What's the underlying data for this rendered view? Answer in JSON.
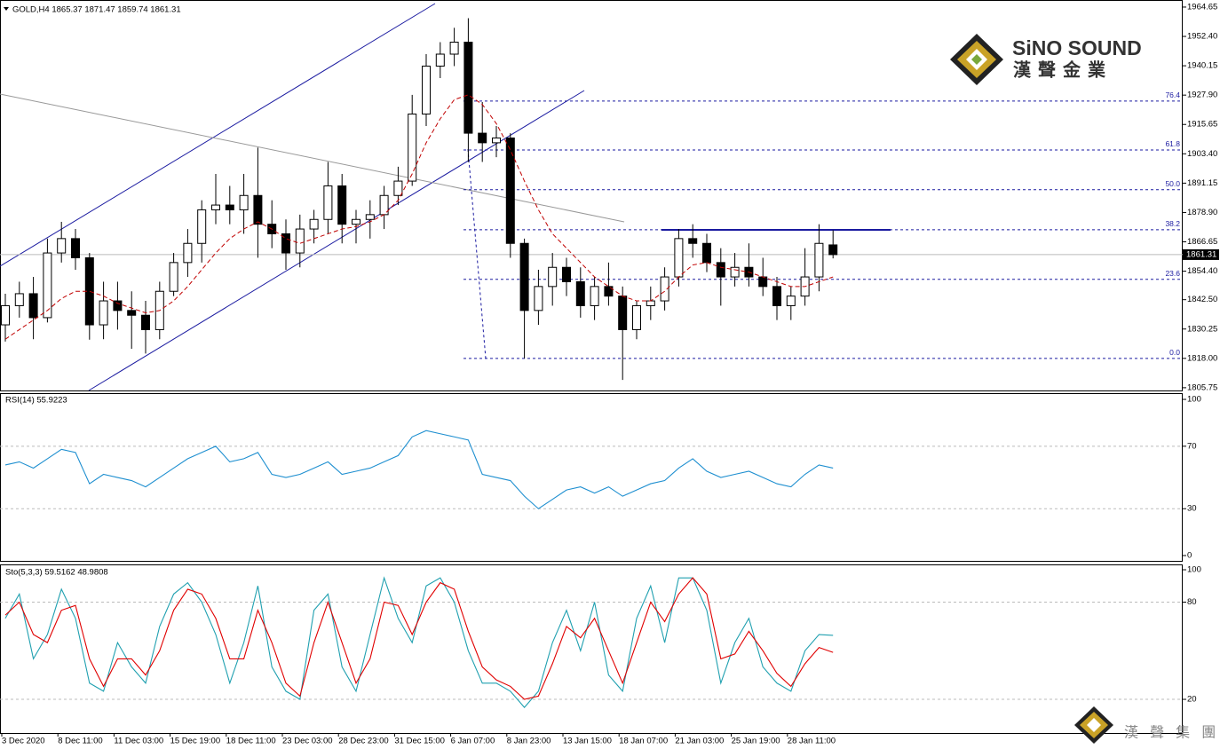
{
  "chart_data": [
    {
      "type": "candlestick",
      "title": "GOLD,H4  1865.37 1871.47 1859.74 1861.31",
      "categories": [
        "3 Dec 2020",
        null,
        null,
        null,
        "8 Dec 11:00",
        null,
        null,
        null,
        "11 Dec 03:00",
        null,
        null,
        null,
        "15 Dec 19:00",
        null,
        null,
        null,
        "18 Dec 11:00",
        null,
        null,
        null,
        "23 Dec 03:00",
        null,
        null,
        null,
        "28 Dec 23:00",
        null,
        null,
        null,
        "31 Dec 15:00",
        null,
        null,
        null,
        "6 Jan 07:00",
        null,
        null,
        null,
        "8 Jan 23:00",
        null,
        null,
        null,
        "13 Jan 15:00",
        null,
        null,
        null,
        "18 Jan 07:00",
        null,
        null,
        null,
        "21 Jan 03:00",
        null,
        null,
        null,
        "25 Jan 19:00",
        null,
        null,
        null,
        "28 Jan 11:00",
        null,
        null,
        null
      ],
      "open": [
        1832,
        1840,
        1845,
        1835,
        1862,
        1868,
        1860,
        1832,
        1842,
        1838,
        1836,
        1830,
        1846,
        1858,
        1866,
        1880,
        1882,
        1880,
        1886,
        1874,
        1870,
        1862,
        1872,
        1876,
        1890,
        1874,
        1876,
        1878,
        1886,
        1892,
        1920,
        1940,
        1945,
        1950,
        1912,
        1908,
        1910,
        1866,
        1838,
        1848,
        1856,
        1850,
        1840,
        1848,
        1844,
        1830,
        1840,
        1842,
        1852,
        1868,
        1866,
        1858,
        1852,
        1856,
        1852,
        1848,
        1840,
        1844,
        1852,
        1865.37
      ],
      "high": [
        1845,
        1850,
        1852,
        1868,
        1875,
        1872,
        1862,
        1850,
        1850,
        1846,
        1842,
        1850,
        1862,
        1872,
        1884,
        1895,
        1890,
        1895,
        1906,
        1884,
        1876,
        1878,
        1880,
        1900,
        1895,
        1880,
        1884,
        1890,
        1898,
        1928,
        1945,
        1950,
        1956,
        1960,
        1925,
        1915,
        1912,
        1868,
        1855,
        1862,
        1860,
        1856,
        1852,
        1858,
        1848,
        1842,
        1848,
        1856,
        1872,
        1874,
        1870,
        1864,
        1862,
        1866,
        1860,
        1852,
        1848,
        1864,
        1874,
        1871.47
      ],
      "low": [
        1825,
        1835,
        1826,
        1833,
        1858,
        1855,
        1825.8,
        1826,
        1830,
        1822,
        1820,
        1826,
        1844,
        1852,
        1858,
        1874,
        1874,
        1870,
        1860,
        1864,
        1855,
        1856,
        1866,
        1870,
        1866,
        1866,
        1868,
        1872,
        1882,
        1890,
        1915,
        1935,
        1940,
        1900,
        1900,
        1902,
        1860,
        1818,
        1832,
        1840,
        1844,
        1835,
        1834,
        1840,
        1809,
        1826,
        1834,
        1838,
        1848,
        1860,
        1854,
        1840,
        1848,
        1848,
        1844,
        1834,
        1834,
        1840,
        1846,
        1859.74
      ],
      "close": [
        1840,
        1845,
        1835,
        1862,
        1868,
        1860,
        1832,
        1842,
        1838,
        1836,
        1830,
        1846,
        1858,
        1866,
        1880,
        1882,
        1880,
        1886,
        1874,
        1870,
        1862,
        1872,
        1876,
        1890,
        1874,
        1876,
        1878,
        1886,
        1892,
        1920,
        1940,
        1945,
        1950,
        1912,
        1908,
        1910,
        1866,
        1838,
        1848,
        1856,
        1850,
        1840,
        1848,
        1844,
        1830,
        1840,
        1842,
        1852,
        1868,
        1866,
        1858,
        1852,
        1856,
        1852,
        1848,
        1840,
        1844,
        1852,
        1866,
        1861.31
      ],
      "moving_average": {
        "color": "#c00000",
        "values": [
          1826,
          1830,
          1834,
          1838,
          1843,
          1846,
          1846,
          1844,
          1841,
          1839,
          1837,
          1838,
          1842,
          1848,
          1855,
          1862,
          1868,
          1872,
          1875,
          1872,
          1868,
          1866,
          1868,
          1870,
          1872,
          1873,
          1875,
          1878,
          1884,
          1895,
          1908,
          1918,
          1926,
          1928,
          1924,
          1916,
          1905,
          1892,
          1880,
          1870,
          1864,
          1858,
          1852,
          1848,
          1844,
          1842,
          1842,
          1846,
          1852,
          1857,
          1858,
          1856,
          1855,
          1854,
          1852,
          1850,
          1848,
          1848,
          1850,
          1852
        ]
      },
      "last_price": 1861.31,
      "fib_levels": [
        {
          "label": "76.4",
          "price": 1925.4
        },
        {
          "label": "61.8",
          "price": 1905.0
        },
        {
          "label": "50.0",
          "price": 1888.4
        },
        {
          "label": "38.2",
          "price": 1871.7
        },
        {
          "label": "23.6",
          "price": 1851.0
        },
        {
          "label": "0.0",
          "price": 1818.0
        }
      ],
      "fib_color": "#1a1aa0",
      "ylim": [
        1804.6,
        1967.6
      ],
      "yticks": [
        1964.65,
        {
          "value": 1952.4,
          "label": "1952.40"
        },
        1940.15,
        {
          "value": 1927.9,
          "label": "1927.90"
        },
        1915.65,
        {
          "value": 1903.4,
          "label": "1903.40"
        },
        1891.15,
        {
          "value": 1878.9,
          "label": "1878.90"
        },
        1866.65,
        {
          "value": 1854.4,
          "label": "1854.40"
        },
        {
          "value": 1842.5,
          "label": "1842.50"
        },
        1830.25,
        {
          "value": 1818.0,
          "label": "1818.00"
        },
        1805.75
      ]
    },
    {
      "type": "line",
      "title": "RSI(14) 55.9223",
      "series": [
        {
          "color": "#1e8fd0",
          "values": [
            58,
            60,
            56,
            62,
            68,
            66,
            46,
            52,
            50,
            48,
            44,
            50,
            56,
            62,
            66,
            70,
            60,
            62,
            66,
            52,
            50,
            52,
            56,
            60,
            52,
            54,
            56,
            60,
            64,
            76,
            80,
            78,
            76,
            74,
            52,
            50,
            48,
            38,
            30,
            36,
            42,
            44,
            40,
            44,
            38,
            42,
            46,
            48,
            56,
            62,
            54,
            50,
            52,
            54,
            50,
            46,
            44,
            52,
            58,
            56
          ]
        }
      ],
      "ylim": [
        -3.4,
        104
      ],
      "yticks": [
        0,
        30,
        70,
        100
      ],
      "levels": [
        30,
        70
      ]
    },
    {
      "type": "line",
      "title": "Sto(5,3,3) 59.5162 48.9808",
      "series": [
        {
          "color": "#20a0b0",
          "values": [
            70,
            85,
            45,
            60,
            88,
            70,
            30,
            25,
            55,
            40,
            30,
            65,
            85,
            92,
            80,
            60,
            30,
            55,
            90,
            40,
            25,
            20,
            75,
            85,
            40,
            25,
            60,
            95,
            70,
            55,
            90,
            95,
            80,
            50,
            30,
            30,
            25,
            15,
            25,
            55,
            75,
            50,
            80,
            35,
            25,
            70,
            90,
            55,
            95,
            95,
            75,
            30,
            55,
            70,
            40,
            30,
            25,
            50,
            60,
            59.5
          ]
        },
        {
          "color": "#e00000",
          "values": [
            72,
            80,
            60,
            55,
            75,
            78,
            45,
            28,
            45,
            45,
            35,
            50,
            75,
            88,
            85,
            70,
            45,
            45,
            75,
            55,
            30,
            22,
            55,
            80,
            55,
            30,
            45,
            80,
            78,
            60,
            80,
            92,
            88,
            62,
            40,
            32,
            28,
            20,
            22,
            42,
            65,
            58,
            70,
            50,
            30,
            55,
            80,
            68,
            85,
            95,
            85,
            45,
            48,
            62,
            50,
            36,
            28,
            42,
            52,
            49
          ]
        }
      ],
      "ylim": [
        -0.8,
        103.3
      ],
      "yticks": [
        20,
        80,
        100
      ],
      "levels": [
        20,
        80
      ]
    }
  ],
  "branding": {
    "brand": "SiNO SOUND",
    "chinese": "漢聲金業",
    "watermark": "漢 聲 集 團"
  }
}
